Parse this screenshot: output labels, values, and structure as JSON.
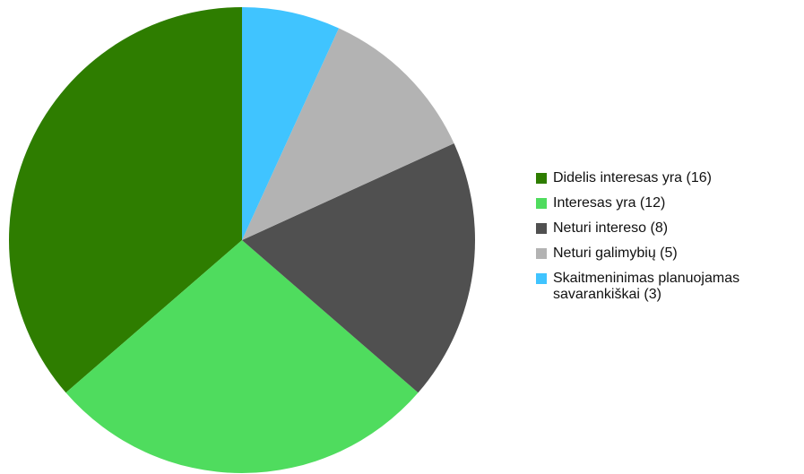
{
  "chart_data": {
    "type": "pie",
    "categories": [
      "Didelis interesas yra (16)",
      "Interesas yra (12)",
      "Neturi intereso (8)",
      "Neturi galimybių (5)",
      "Skaitmeninimas planuojamas savarankiškai (3)"
    ],
    "values": [
      16,
      12,
      8,
      5,
      3
    ],
    "colors": [
      "#2e7d00",
      "#4fdc5e",
      "#505050",
      "#b3b3b3",
      "#40c4ff"
    ]
  }
}
